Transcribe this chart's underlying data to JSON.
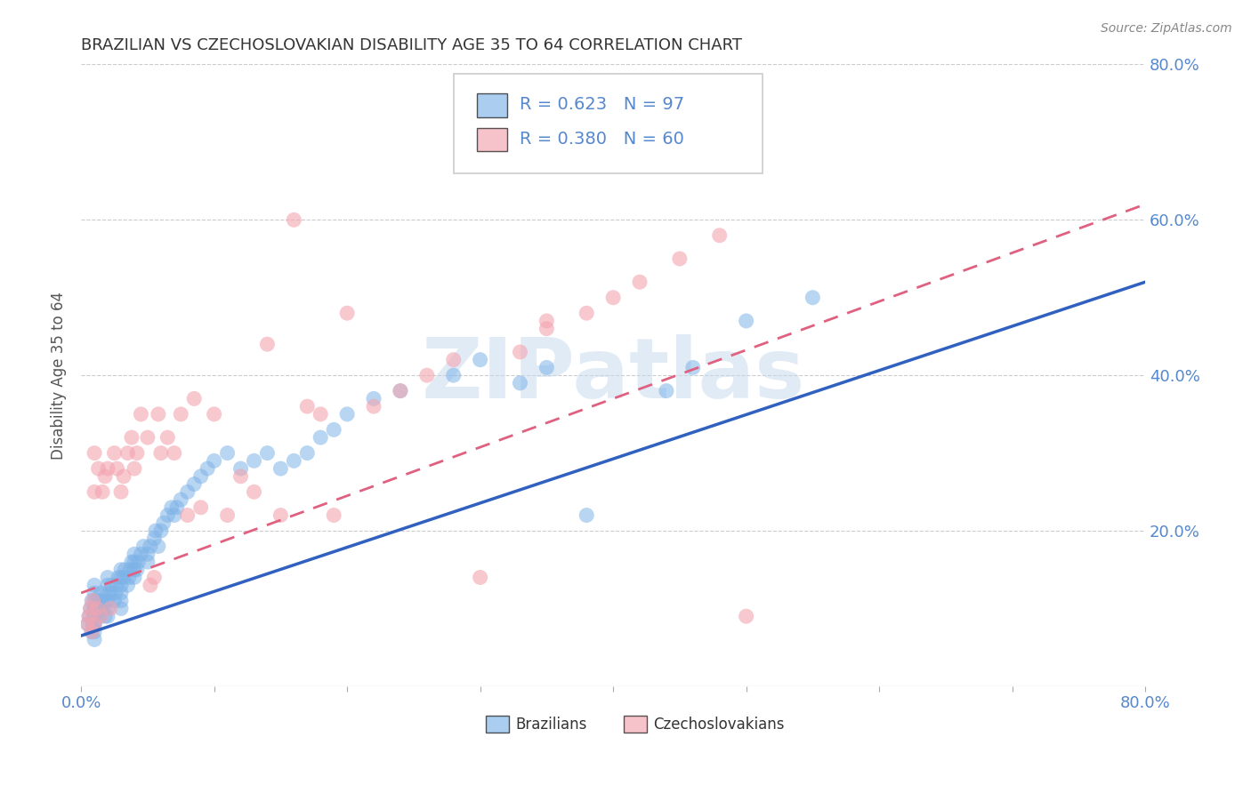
{
  "title": "BRAZILIAN VS CZECHOSLOVAKIAN DISABILITY AGE 35 TO 64 CORRELATION CHART",
  "source": "Source: ZipAtlas.com",
  "ylabel": "Disability Age 35 to 64",
  "xmin": 0.0,
  "xmax": 0.8,
  "ymin": 0.0,
  "ymax": 0.8,
  "xticks": [
    0.0,
    0.1,
    0.2,
    0.3,
    0.4,
    0.5,
    0.6,
    0.7,
    0.8
  ],
  "yticks": [
    0.0,
    0.2,
    0.4,
    0.6,
    0.8
  ],
  "ytick_labels": [
    "",
    "20.0%",
    "40.0%",
    "60.0%",
    "80.0%"
  ],
  "blue_R": 0.623,
  "blue_N": 97,
  "pink_R": 0.38,
  "pink_N": 60,
  "blue_color": "#7EB3E8",
  "pink_color": "#F4A4B0",
  "blue_line_color": "#3060C0",
  "pink_line_color": "#E06080",
  "grid_color": "#CCCCCC",
  "axis_color": "#5588CC",
  "title_color": "#333333",
  "watermark_text": "ZIPatlas",
  "watermark_color": "#C5D9EE",
  "background_color": "#FFFFFF",
  "blue_scatter_x": [
    0.005,
    0.006,
    0.007,
    0.008,
    0.008,
    0.009,
    0.01,
    0.01,
    0.01,
    0.01,
    0.01,
    0.01,
    0.01,
    0.01,
    0.01,
    0.01,
    0.01,
    0.012,
    0.013,
    0.014,
    0.015,
    0.015,
    0.016,
    0.017,
    0.018,
    0.019,
    0.02,
    0.02,
    0.02,
    0.02,
    0.02,
    0.02,
    0.022,
    0.023,
    0.025,
    0.026,
    0.027,
    0.028,
    0.03,
    0.03,
    0.03,
    0.03,
    0.03,
    0.03,
    0.032,
    0.033,
    0.035,
    0.036,
    0.037,
    0.038,
    0.04,
    0.04,
    0.04,
    0.04,
    0.042,
    0.043,
    0.045,
    0.047,
    0.05,
    0.05,
    0.052,
    0.055,
    0.056,
    0.058,
    0.06,
    0.062,
    0.065,
    0.068,
    0.07,
    0.072,
    0.075,
    0.08,
    0.085,
    0.09,
    0.095,
    0.1,
    0.11,
    0.12,
    0.13,
    0.14,
    0.15,
    0.16,
    0.17,
    0.18,
    0.19,
    0.2,
    0.22,
    0.24,
    0.28,
    0.3,
    0.33,
    0.35,
    0.38,
    0.44,
    0.46,
    0.5,
    0.55
  ],
  "blue_scatter_y": [
    0.08,
    0.09,
    0.1,
    0.07,
    0.11,
    0.08,
    0.06,
    0.07,
    0.08,
    0.09,
    0.1,
    0.11,
    0.12,
    0.13,
    0.08,
    0.09,
    0.1,
    0.1,
    0.11,
    0.09,
    0.12,
    0.1,
    0.11,
    0.1,
    0.09,
    0.11,
    0.1,
    0.11,
    0.12,
    0.13,
    0.14,
    0.09,
    0.12,
    0.13,
    0.11,
    0.12,
    0.13,
    0.14,
    0.12,
    0.13,
    0.14,
    0.15,
    0.1,
    0.11,
    0.14,
    0.15,
    0.13,
    0.14,
    0.15,
    0.16,
    0.14,
    0.15,
    0.16,
    0.17,
    0.15,
    0.16,
    0.17,
    0.18,
    0.16,
    0.17,
    0.18,
    0.19,
    0.2,
    0.18,
    0.2,
    0.21,
    0.22,
    0.23,
    0.22,
    0.23,
    0.24,
    0.25,
    0.26,
    0.27,
    0.28,
    0.29,
    0.3,
    0.28,
    0.29,
    0.3,
    0.28,
    0.29,
    0.3,
    0.32,
    0.33,
    0.35,
    0.37,
    0.38,
    0.4,
    0.42,
    0.39,
    0.41,
    0.22,
    0.38,
    0.41,
    0.47,
    0.5
  ],
  "pink_scatter_x": [
    0.005,
    0.006,
    0.007,
    0.008,
    0.009,
    0.01,
    0.01,
    0.01,
    0.012,
    0.013,
    0.015,
    0.016,
    0.018,
    0.02,
    0.022,
    0.025,
    0.027,
    0.03,
    0.032,
    0.035,
    0.038,
    0.04,
    0.042,
    0.045,
    0.05,
    0.052,
    0.055,
    0.058,
    0.06,
    0.065,
    0.07,
    0.075,
    0.08,
    0.085,
    0.09,
    0.1,
    0.11,
    0.12,
    0.13,
    0.14,
    0.15,
    0.16,
    0.17,
    0.18,
    0.19,
    0.2,
    0.22,
    0.24,
    0.26,
    0.28,
    0.3,
    0.33,
    0.35,
    0.38,
    0.4,
    0.42,
    0.45,
    0.48,
    0.5,
    0.35
  ],
  "pink_scatter_y": [
    0.08,
    0.09,
    0.1,
    0.07,
    0.11,
    0.08,
    0.25,
    0.3,
    0.1,
    0.28,
    0.09,
    0.25,
    0.27,
    0.28,
    0.1,
    0.3,
    0.28,
    0.25,
    0.27,
    0.3,
    0.32,
    0.28,
    0.3,
    0.35,
    0.32,
    0.13,
    0.14,
    0.35,
    0.3,
    0.32,
    0.3,
    0.35,
    0.22,
    0.37,
    0.23,
    0.35,
    0.22,
    0.27,
    0.25,
    0.44,
    0.22,
    0.6,
    0.36,
    0.35,
    0.22,
    0.48,
    0.36,
    0.38,
    0.4,
    0.42,
    0.14,
    0.43,
    0.46,
    0.48,
    0.5,
    0.52,
    0.55,
    0.58,
    0.09,
    0.47
  ],
  "blue_line_y_start": 0.065,
  "blue_line_y_end": 0.52,
  "pink_line_y_start": 0.12,
  "pink_line_y_end": 0.62
}
